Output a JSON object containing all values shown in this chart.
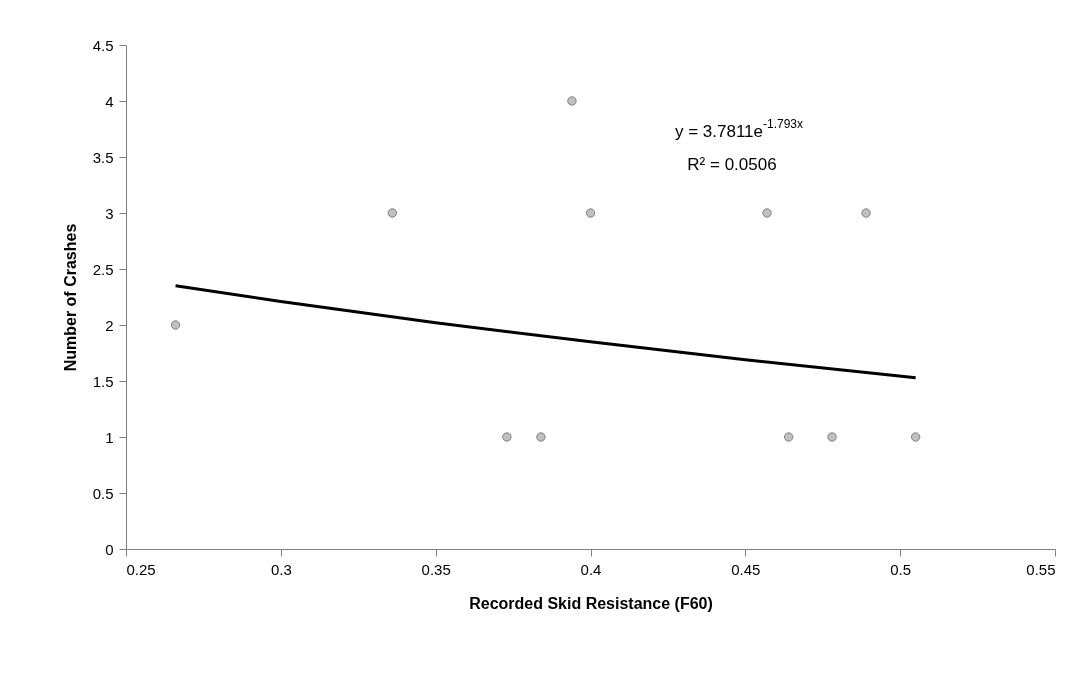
{
  "chart_data": {
    "type": "scatter",
    "xlabel": "Recorded Skid Resistance (F60)",
    "ylabel": "Number of Crashes",
    "x": [
      0.266,
      0.336,
      0.373,
      0.384,
      0.394,
      0.4,
      0.457,
      0.464,
      0.478,
      0.489,
      0.505
    ],
    "series": [
      {
        "type": "scatter",
        "color": "#c0c0c0",
        "marker": "circle",
        "values": [
          2,
          3,
          1,
          1,
          4,
          3,
          3,
          1,
          1,
          3,
          1
        ]
      },
      {
        "type": "line",
        "color": "#000000",
        "marker": "none",
        "line_style": "solid",
        "x": [
          0.266,
          0.3,
          0.35,
          0.4,
          0.45,
          0.505
        ],
        "values": [
          2.35,
          2.21,
          2.02,
          1.85,
          1.69,
          1.53
        ]
      }
    ],
    "xlim": [
      0.25,
      0.55
    ],
    "xticks": [
      0.25,
      0.3,
      0.35,
      0.4,
      0.45,
      0.5,
      0.55
    ],
    "ylim": [
      0,
      4.5
    ],
    "yticks": [
      0,
      0.5,
      1,
      1.5,
      2,
      2.5,
      3,
      3.5,
      4,
      4.5
    ],
    "grid": false,
    "legend": false,
    "annotations": [
      "y = 3.7811e$^{-1.793x}$",
      "R² = 0.0506"
    ]
  }
}
